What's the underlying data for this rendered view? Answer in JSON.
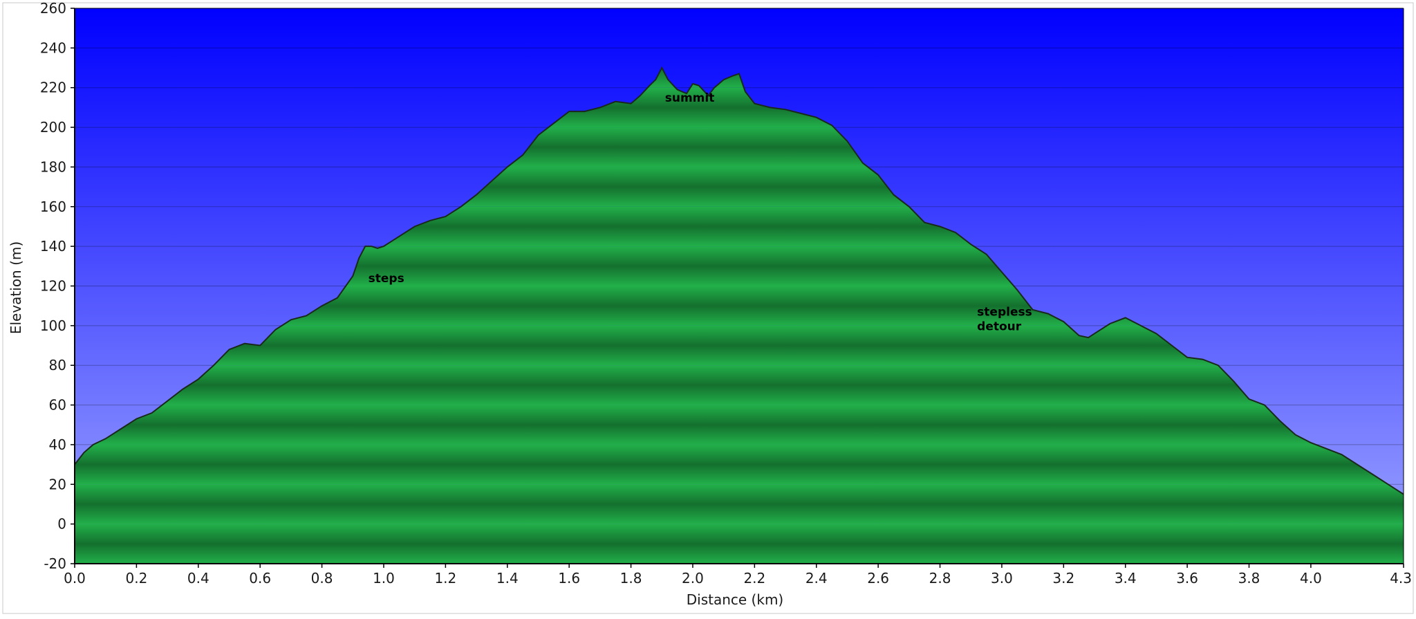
{
  "chart_data": {
    "type": "area",
    "xlabel": "Distance  (km)",
    "ylabel": "Elevation (m)",
    "xlim": [
      0,
      4.3
    ],
    "ylim": [
      -20,
      260
    ],
    "x_ticks": [
      "0.0",
      "0.2",
      "0.4",
      "0.6",
      "0.8",
      "1.0",
      "1.2",
      "1.4",
      "1.6",
      "1.8",
      "2.0",
      "2.2",
      "2.4",
      "2.6",
      "2.8",
      "3.0",
      "3.2",
      "3.4",
      "3.6",
      "3.8",
      "4.0",
      "4.3"
    ],
    "y_ticks": [
      "-20",
      "0",
      "20",
      "40",
      "60",
      "80",
      "100",
      "120",
      "140",
      "160",
      "180",
      "200",
      "220",
      "240",
      "260"
    ],
    "grid": true,
    "colors": {
      "sky_top": "#0000ff",
      "sky_bottom": "#a0a8ff",
      "terrain_light": "#22b04a",
      "terrain_dark": "#14702e",
      "outline": "#1a2a1a"
    },
    "annotations": [
      {
        "text": [
          "steps"
        ],
        "x": 0.95,
        "y": 122
      },
      {
        "text": [
          "summit"
        ],
        "x": 1.91,
        "y": 213
      },
      {
        "text": [
          "stepless",
          "detour"
        ],
        "x": 2.92,
        "y": 105
      }
    ],
    "series": [
      {
        "x": [
          0.0,
          0.03,
          0.06,
          0.1,
          0.15,
          0.2,
          0.25,
          0.3,
          0.35,
          0.4,
          0.45,
          0.5,
          0.55,
          0.6,
          0.65,
          0.7,
          0.75,
          0.8,
          0.85,
          0.9,
          0.92,
          0.94,
          0.96,
          0.98,
          1.0,
          1.05,
          1.1,
          1.15,
          1.2,
          1.25,
          1.3,
          1.35,
          1.4,
          1.45,
          1.5,
          1.55,
          1.6,
          1.65,
          1.7,
          1.75,
          1.8,
          1.83,
          1.86,
          1.88,
          1.9,
          1.92,
          1.95,
          1.98,
          2.0,
          2.02,
          2.05,
          2.07,
          2.1,
          2.13,
          2.15,
          2.17,
          2.2,
          2.25,
          2.3,
          2.35,
          2.4,
          2.45,
          2.5,
          2.55,
          2.6,
          2.65,
          2.7,
          2.75,
          2.8,
          2.85,
          2.9,
          2.95,
          3.0,
          3.05,
          3.1,
          3.15,
          3.2,
          3.25,
          3.28,
          3.3,
          3.35,
          3.4,
          3.45,
          3.5,
          3.55,
          3.6,
          3.65,
          3.7,
          3.75,
          3.8,
          3.85,
          3.9,
          3.95,
          4.0,
          4.05,
          4.1,
          4.15,
          4.2,
          4.25,
          4.3
        ],
        "values": [
          30,
          36,
          40,
          43,
          48,
          53,
          56,
          62,
          68,
          73,
          80,
          88,
          91,
          90,
          98,
          103,
          105,
          110,
          114,
          125,
          134,
          140,
          140,
          139,
          140,
          145,
          150,
          153,
          155,
          160,
          166,
          173,
          180,
          186,
          196,
          202,
          208,
          208,
          210,
          213,
          212,
          216,
          221,
          224,
          230,
          224,
          219,
          217,
          222,
          221,
          216,
          220,
          224,
          226,
          227,
          218,
          212,
          210,
          209,
          207,
          205,
          201,
          193,
          182,
          176,
          166,
          160,
          152,
          150,
          147,
          141,
          136,
          127,
          118,
          108,
          106,
          102,
          95,
          94,
          96,
          101,
          104,
          100,
          96,
          90,
          84,
          83,
          80,
          72,
          63,
          60,
          52,
          45,
          41,
          38,
          35,
          30,
          25,
          20,
          15
        ]
      }
    ]
  }
}
